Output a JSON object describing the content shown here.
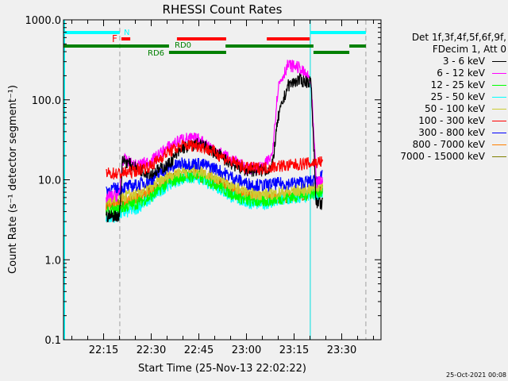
{
  "chart_data": {
    "type": "line",
    "title": "RHESSI Count Rates",
    "xlabel": "Start Time (25-Nov-13 22:02:22)",
    "ylabel": "Count Rate (s⁻¹ detector segment⁻¹)",
    "yscale": "log",
    "ylim": [
      0.1,
      1000
    ],
    "xlim_minutes_after_2200": [
      2.37,
      102.37
    ],
    "y_tick_labels": [
      "1000.0",
      "100.0",
      "10.0",
      "1.0",
      "0.1"
    ],
    "y_tick_values": [
      1000,
      100,
      10,
      1,
      0.1
    ],
    "x_tick_labels": [
      "22:15",
      "22:30",
      "22:45",
      "23:00",
      "23:15",
      "23:30"
    ],
    "x_tick_minutes": [
      15,
      30,
      45,
      60,
      75,
      90
    ],
    "legend_header": [
      "Det 1f,3f,4f,5f,6f,9f,",
      "FDecim 1, Att 0"
    ],
    "legend_position": "right",
    "x_minutes": [
      15.8,
      20,
      21,
      25,
      30,
      35,
      40,
      45,
      50,
      55,
      60,
      65,
      68,
      70,
      73,
      76,
      79,
      80.3,
      82,
      84
    ],
    "series": [
      {
        "name": "3 - 6 keV",
        "color": "#000000",
        "values": [
          3.5,
          3.6,
          18,
          14,
          12,
          15,
          25,
          28,
          22,
          16,
          13,
          13,
          14,
          60,
          150,
          175,
          170,
          170,
          5,
          5
        ]
      },
      {
        "name": "6 - 12 keV",
        "color": "#ff00ff",
        "values": [
          6,
          6.5,
          18,
          15,
          17,
          25,
          33,
          32,
          24,
          18,
          14,
          14,
          20,
          150,
          270,
          260,
          200,
          170,
          9,
          10
        ]
      },
      {
        "name": "12 - 25 keV",
        "color": "#00ff00",
        "values": [
          3.8,
          4.2,
          4.5,
          5,
          6.2,
          9,
          11,
          11,
          9,
          6.8,
          5.5,
          5.3,
          5.6,
          5.8,
          6,
          6.3,
          6.6,
          6.8,
          7,
          7.2
        ]
      },
      {
        "name": "25 - 50 keV",
        "color": "#00ffff",
        "values": [
          3.3,
          3.6,
          3.8,
          4.3,
          5.8,
          8.5,
          10.5,
          10.5,
          8.5,
          6.2,
          5.2,
          5,
          5.2,
          5.4,
          5.6,
          5.9,
          6.2,
          6.4,
          6.6,
          6.8
        ]
      },
      {
        "name": "50 - 100 keV",
        "color": "#cccc33",
        "values": [
          5.5,
          6,
          6.2,
          6.5,
          8,
          11,
          13,
          13,
          11,
          8.5,
          7,
          6.6,
          6.7,
          6.8,
          7,
          7.3,
          7.6,
          7.8,
          8.2,
          8.5
        ]
      },
      {
        "name": "100 - 300 keV",
        "color": "#ff0000",
        "values": [
          12,
          12,
          12,
          13,
          15,
          22,
          27,
          27,
          22,
          17,
          14,
          14,
          14.5,
          15,
          15,
          15.5,
          16,
          16,
          16.5,
          17
        ]
      },
      {
        "name": "300 - 800 keV",
        "color": "#0000ff",
        "values": [
          7.5,
          7.8,
          8,
          8.5,
          10,
          14,
          16,
          16,
          14,
          11,
          9,
          8.5,
          8.8,
          9,
          9,
          9.2,
          9.5,
          9.5,
          10,
          11
        ]
      },
      {
        "name": "800 - 7000 keV",
        "color": "#ff8000",
        "values": [
          5,
          5.3,
          5.5,
          6,
          7.5,
          10,
          12,
          12,
          10,
          8,
          6.5,
          6,
          6,
          6,
          6.3,
          6.5,
          6.8,
          7,
          7.5,
          8
        ]
      },
      {
        "name": "7000 - 15000 keV",
        "color": "#808000",
        "values": [
          4.8,
          5.1,
          5.3,
          5.8,
          7.2,
          9.6,
          11.5,
          11.5,
          9.6,
          7.7,
          6.2,
          5.8,
          5.8,
          5.8,
          6.1,
          6.3,
          6.6,
          6.8,
          7.2,
          7.7
        ]
      }
    ],
    "state_bars": [
      {
        "label": "N",
        "color": "#00ffff",
        "row": 0,
        "ranges": [
          [
            2.37,
            20.1
          ],
          [
            80.1,
            97.6
          ]
        ]
      },
      {
        "label": "F",
        "color": "#ff0000",
        "row": 1,
        "ranges": [
          [
            20.6,
            23.4
          ],
          [
            38.1,
            53.6
          ],
          [
            66.4,
            79.9
          ]
        ]
      },
      {
        "label": "RD0",
        "color": "#008000",
        "row": 2,
        "ranges": [
          [
            2.37,
            35.6
          ],
          [
            53.4,
            81.1
          ],
          [
            92.4,
            97.6
          ]
        ]
      },
      {
        "label": "RD6",
        "color": "#008000",
        "row": 3,
        "ranges": [
          [
            35.6,
            53.6
          ],
          [
            81.1,
            92.4
          ]
        ]
      }
    ],
    "event_lines_minutes": [
      {
        "t": 20.1,
        "style": "dashed"
      },
      {
        "t": 80.1,
        "style": "solid"
      },
      {
        "t": 97.6,
        "style": "dashed"
      }
    ]
  },
  "footer": {
    "timestamp": "25-Oct-2021 00:08"
  }
}
